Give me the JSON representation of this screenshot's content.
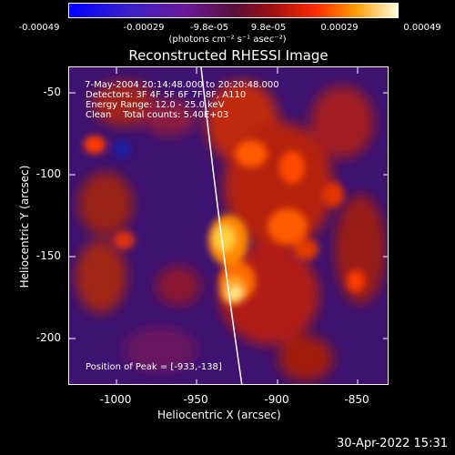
{
  "colorbar": {
    "tick_labels": [
      "-0.00049",
      "-0.00029",
      "-9.8e-05",
      "9.8e-05",
      "0.00029",
      "0.00049"
    ],
    "units_label": "(photons cm⁻² s⁻¹ asec⁻²)"
  },
  "plot": {
    "title": "Reconstructed RHESSI Image",
    "annotations": {
      "time_range": " 7-May-2004 20:14:48.000 to 20:20:48.000",
      "detectors": "Detectors: 3F 4F 5F 6F 7F 8F, A110",
      "energy_range": "Energy Range: 12.0 - 25.0 keV",
      "clean_counts": "Clean    Total counts: 5.40E+03",
      "peak_position": "Position of Peak = [-933,-138]"
    },
    "xlabel": "Heliocentric X (arcsec)",
    "ylabel": "Heliocentric Y (arcsec)",
    "x_ticks": [
      "-1000",
      "-950",
      "-900",
      "-850"
    ],
    "y_ticks": [
      "-50",
      "-100",
      "-150",
      "-200"
    ],
    "xlim": [
      -1026,
      -833
    ],
    "ylim": [
      -227,
      -38
    ]
  },
  "footer": {
    "timestamp": "30-Apr-2022 15:31"
  }
}
